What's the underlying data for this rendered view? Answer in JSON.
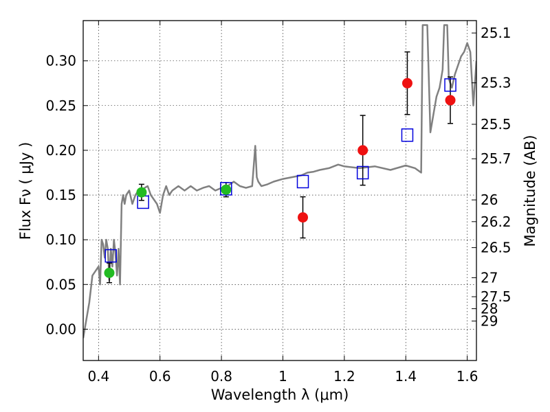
{
  "chart_data": {
    "type": "scatter",
    "title": "",
    "xlabel": "Wavelength  λ (μm)",
    "ylabel": "Flux  Fν  ( μJy )",
    "ylabel_right": "Magnitude (AB)",
    "xlim": [
      0.35,
      1.63
    ],
    "ylim": [
      -0.035,
      0.345
    ],
    "x_ticks": [
      0.4,
      0.6,
      0.8,
      1.0,
      1.2,
      1.4,
      1.6
    ],
    "x_tick_labels": [
      "0.4",
      "0.6",
      "0.8",
      "1",
      "1.2",
      "1.4",
      "1.6"
    ],
    "y_ticks": [
      0.0,
      0.05,
      0.1,
      0.15,
      0.2,
      0.25,
      0.3
    ],
    "y_tick_labels": [
      "0.00",
      "0.05",
      "0.10",
      "0.15",
      "0.20",
      "0.25",
      "0.30"
    ],
    "right_axis_magnitude_ticks": [
      25.1,
      25.3,
      25.5,
      25.7,
      26,
      26.2,
      26.5,
      27,
      27.5,
      28,
      29
    ],
    "right_axis_tick_labels": [
      "25.1",
      "25.3",
      "25.5",
      "25.7",
      "26",
      "26.2",
      "26.5",
      "27",
      "27.5",
      "28",
      "29"
    ],
    "grid": true,
    "colors": {
      "spectrum": "#808080",
      "green_points": "#22bb22",
      "red_points": "#ee1111",
      "model_squares": "#0000dd",
      "error_bars": "#000000"
    },
    "series": [
      {
        "name": "model spectrum",
        "kind": "line",
        "x": [
          0.35,
          0.37,
          0.38,
          0.39,
          0.4,
          0.405,
          0.41,
          0.415,
          0.42,
          0.425,
          0.43,
          0.435,
          0.44,
          0.445,
          0.45,
          0.455,
          0.46,
          0.465,
          0.47,
          0.475,
          0.48,
          0.485,
          0.49,
          0.5,
          0.51,
          0.52,
          0.53,
          0.54,
          0.55,
          0.56,
          0.57,
          0.58,
          0.59,
          0.6,
          0.61,
          0.62,
          0.63,
          0.64,
          0.66,
          0.68,
          0.7,
          0.72,
          0.74,
          0.76,
          0.78,
          0.8,
          0.82,
          0.84,
          0.86,
          0.88,
          0.9,
          0.91,
          0.915,
          0.92,
          0.93,
          0.95,
          0.97,
          1.0,
          1.03,
          1.06,
          1.08,
          1.1,
          1.12,
          1.15,
          1.18,
          1.2,
          1.25,
          1.3,
          1.35,
          1.4,
          1.43,
          1.45,
          1.455,
          1.46,
          1.465,
          1.47,
          1.48,
          1.49,
          1.5,
          1.51,
          1.52,
          1.525,
          1.53,
          1.535,
          1.54,
          1.55,
          1.56,
          1.57,
          1.58,
          1.59,
          1.6,
          1.61,
          1.615,
          1.62,
          1.63
        ],
        "y": [
          -0.01,
          0.03,
          0.06,
          0.065,
          0.07,
          0.05,
          0.1,
          0.095,
          0.08,
          0.1,
          0.09,
          0.055,
          0.09,
          0.07,
          0.1,
          0.085,
          0.06,
          0.09,
          0.05,
          0.14,
          0.15,
          0.14,
          0.15,
          0.155,
          0.14,
          0.15,
          0.155,
          0.15,
          0.158,
          0.16,
          0.15,
          0.145,
          0.14,
          0.13,
          0.15,
          0.16,
          0.15,
          0.155,
          0.16,
          0.155,
          0.16,
          0.155,
          0.158,
          0.16,
          0.155,
          0.158,
          0.16,
          0.165,
          0.16,
          0.158,
          0.16,
          0.205,
          0.17,
          0.165,
          0.16,
          0.162,
          0.165,
          0.168,
          0.17,
          0.172,
          0.175,
          0.176,
          0.178,
          0.18,
          0.184,
          0.182,
          0.18,
          0.182,
          0.178,
          0.183,
          0.18,
          0.175,
          0.34,
          0.34,
          0.34,
          0.34,
          0.22,
          0.24,
          0.26,
          0.27,
          0.29,
          0.34,
          0.34,
          0.34,
          0.28,
          0.27,
          0.285,
          0.295,
          0.305,
          0.31,
          0.32,
          0.31,
          0.28,
          0.25,
          0.3
        ]
      },
      {
        "name": "measured (green)",
        "kind": "points",
        "x": [
          0.435,
          0.54,
          0.815
        ],
        "y": [
          0.063,
          0.153,
          0.156
        ],
        "yerr": [
          0.011,
          0.009,
          0.008
        ]
      },
      {
        "name": "measured (red)",
        "kind": "points",
        "x": [
          1.065,
          1.26,
          1.405,
          1.545
        ],
        "y": [
          0.125,
          0.2,
          0.275,
          0.256
        ],
        "yerr": [
          0.023,
          0.039,
          0.035,
          0.026
        ]
      },
      {
        "name": "model photometry",
        "kind": "squares",
        "x": [
          0.44,
          0.545,
          0.815,
          1.065,
          1.26,
          1.405,
          1.545
        ],
        "y": [
          0.082,
          0.142,
          0.157,
          0.165,
          0.175,
          0.217,
          0.273
        ]
      }
    ]
  }
}
